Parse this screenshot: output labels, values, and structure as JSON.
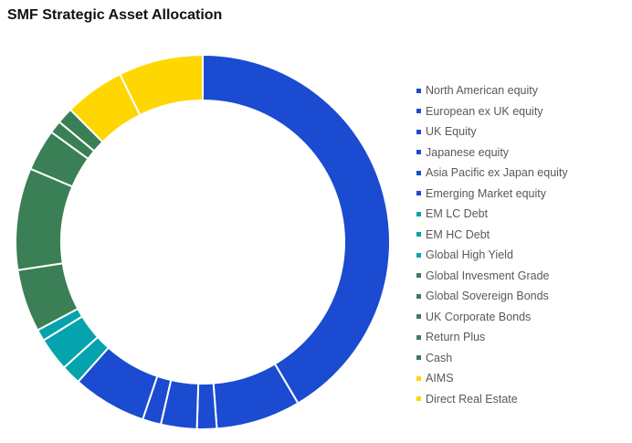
{
  "chart_data": {
    "type": "pie",
    "variant": "donut",
    "title": "SMF Strategic Asset Allocation",
    "unit": "%",
    "legend_position": "right",
    "series": [
      {
        "name": "North American equity",
        "value": 41.5,
        "color": "#1a4bd1"
      },
      {
        "name": "European ex UK equity",
        "value": 7.3,
        "color": "#1a4bd1"
      },
      {
        "name": "UK Equity",
        "value": 1.7,
        "color": "#1a4bd1"
      },
      {
        "name": "Japanese equity",
        "value": 3.1,
        "color": "#1a4bd1"
      },
      {
        "name": "Asia Pacific ex Japan equity",
        "value": 1.6,
        "color": "#1a4bd1"
      },
      {
        "name": "Emerging Market equity",
        "value": 6.4,
        "color": "#1a4bd1"
      },
      {
        "name": "EM LC Debt",
        "value": 1.7,
        "color": "#05a3ad"
      },
      {
        "name": "EM HC Debt",
        "value": 2.9,
        "color": "#05a3ad"
      },
      {
        "name": "Global High Yield",
        "value": 1.0,
        "color": "#05a3ad"
      },
      {
        "name": "Global Invesment Grade",
        "value": 5.4,
        "color": "#3a7f55"
      },
      {
        "name": "Global Sovereign Bonds",
        "value": 8.8,
        "color": "#3a7f55"
      },
      {
        "name": "UK Corporate Bonds",
        "value": 3.6,
        "color": "#3a7f55"
      },
      {
        "name": "Return Plus",
        "value": 1.1,
        "color": "#3a7f55"
      },
      {
        "name": "Cash",
        "value": 1.4,
        "color": "#3a7f55"
      },
      {
        "name": "AIMS",
        "value": 5.2,
        "color": "#ffd700"
      },
      {
        "name": "Direct Real Estate",
        "value": 7.3,
        "color": "#ffd700"
      }
    ]
  }
}
